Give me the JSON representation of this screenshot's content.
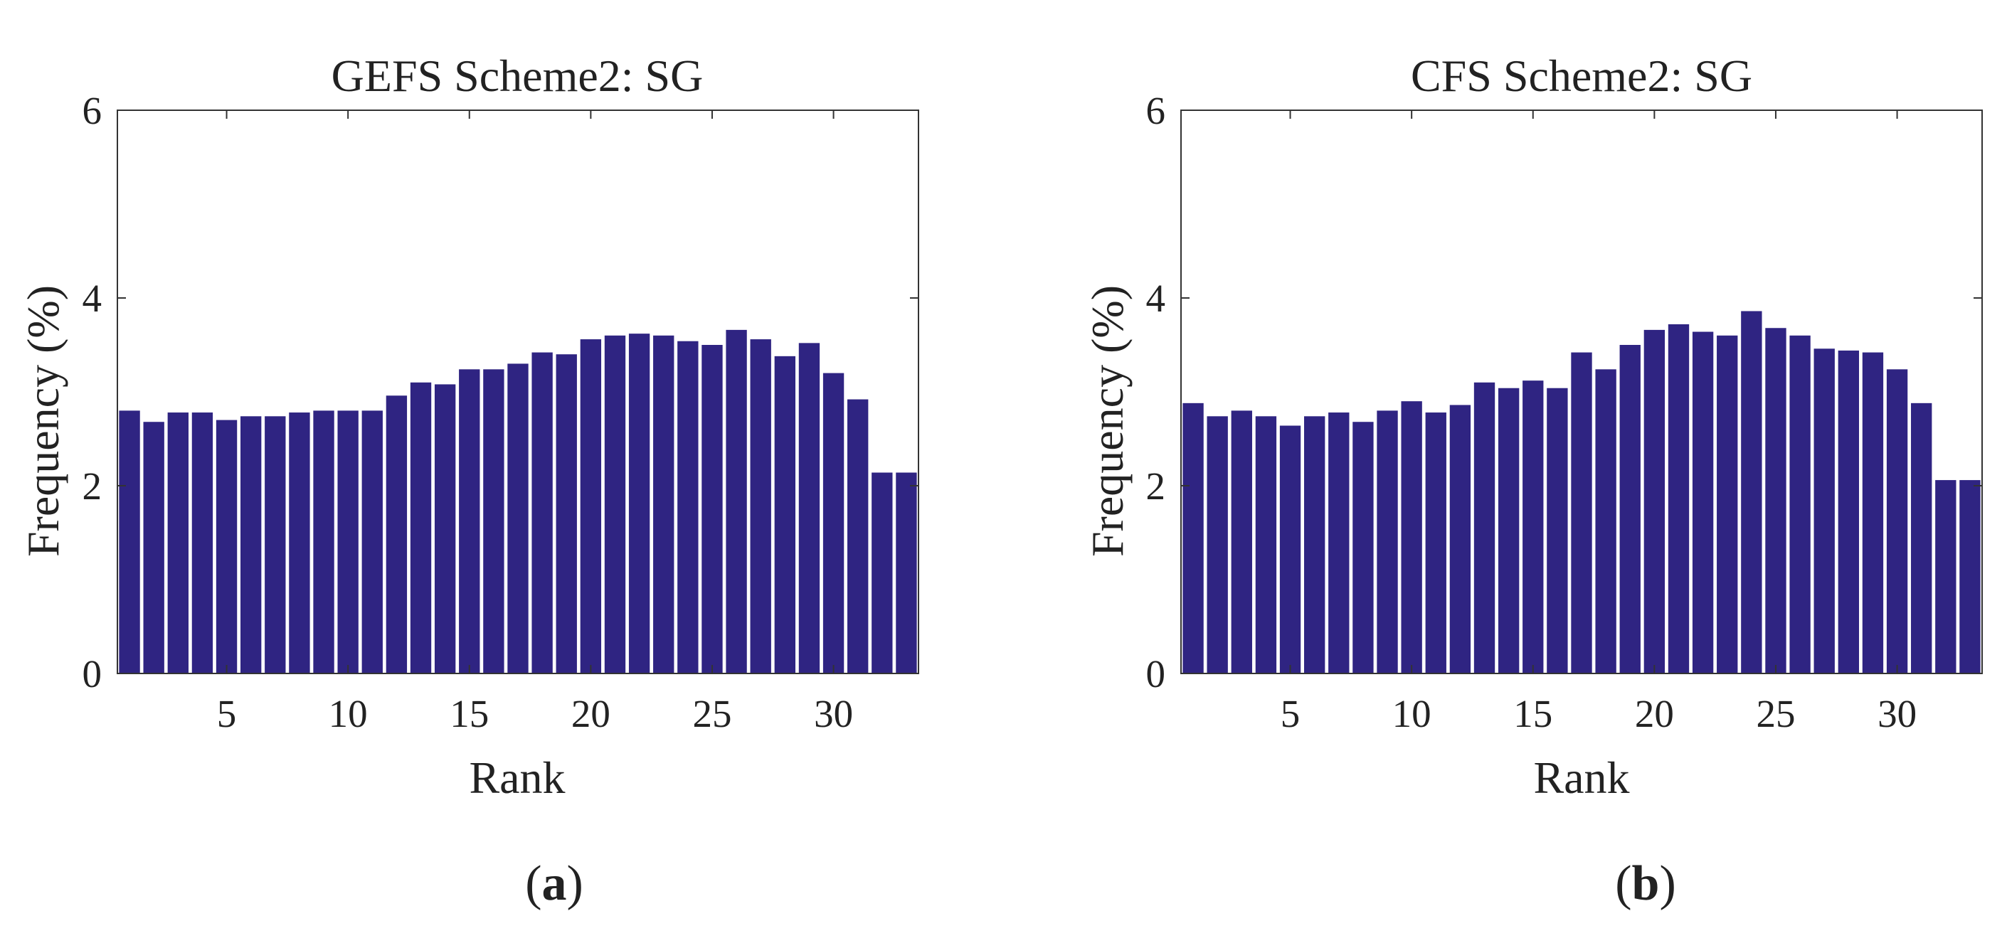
{
  "colors": {
    "bar": "#2f2482",
    "axis": "#333333",
    "text": "#222222"
  },
  "chart_data": [
    {
      "type": "bar",
      "title": "GEFS Scheme2: SG",
      "xlabel": "Rank",
      "ylabel": "Frequency (%)",
      "panel_label": {
        "open": "(",
        "letter": "a",
        "close": ")"
      },
      "xlim": [
        0.5,
        33.5
      ],
      "ylim": [
        0,
        6
      ],
      "xticks": [
        5,
        10,
        15,
        20,
        25,
        30
      ],
      "yticks": [
        0,
        2,
        4,
        6
      ],
      "grid": false,
      "categories": [
        1,
        2,
        3,
        4,
        5,
        6,
        7,
        8,
        9,
        10,
        11,
        12,
        13,
        14,
        15,
        16,
        17,
        18,
        19,
        20,
        21,
        22,
        23,
        24,
        25,
        26,
        27,
        28,
        29,
        30,
        31,
        32,
        33
      ],
      "values": [
        2.8,
        2.68,
        2.78,
        2.78,
        2.7,
        2.74,
        2.74,
        2.78,
        2.8,
        2.8,
        2.8,
        2.96,
        3.1,
        3.08,
        3.24,
        3.24,
        3.3,
        3.42,
        3.4,
        3.56,
        3.6,
        3.62,
        3.6,
        3.54,
        3.5,
        3.66,
        3.56,
        3.38,
        3.52,
        3.2,
        2.92,
        2.14,
        2.14
      ]
    },
    {
      "type": "bar",
      "title": "CFS Scheme2: SG",
      "xlabel": "Rank",
      "ylabel": "Frequency (%)",
      "panel_label": {
        "open": "(",
        "letter": "b",
        "close": ")"
      },
      "xlim": [
        0.5,
        33.5
      ],
      "ylim": [
        0,
        6
      ],
      "xticks": [
        5,
        10,
        15,
        20,
        25,
        30
      ],
      "yticks": [
        0,
        2,
        4,
        6
      ],
      "grid": false,
      "categories": [
        1,
        2,
        3,
        4,
        5,
        6,
        7,
        8,
        9,
        10,
        11,
        12,
        13,
        14,
        15,
        16,
        17,
        18,
        19,
        20,
        21,
        22,
        23,
        24,
        25,
        26,
        27,
        28,
        29,
        30,
        31,
        32,
        33
      ],
      "values": [
        2.88,
        2.74,
        2.8,
        2.74,
        2.64,
        2.74,
        2.78,
        2.68,
        2.8,
        2.9,
        2.78,
        2.86,
        3.1,
        3.04,
        3.12,
        3.04,
        3.42,
        3.24,
        3.5,
        3.66,
        3.72,
        3.64,
        3.6,
        3.86,
        3.68,
        3.6,
        3.46,
        3.44,
        3.42,
        3.24,
        2.88,
        2.06,
        2.06
      ]
    }
  ]
}
